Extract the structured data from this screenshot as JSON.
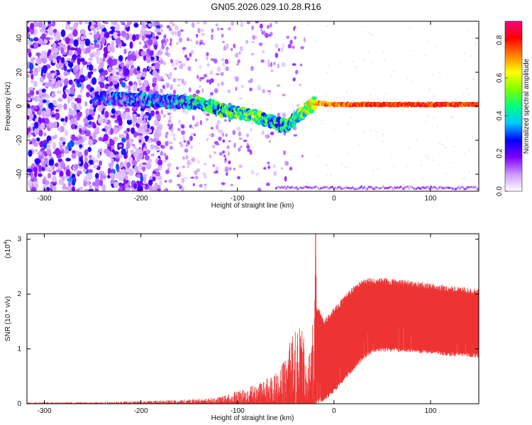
{
  "title": "GN05.2026.029.10.28.R16",
  "chart_data": [
    {
      "type": "heatmap",
      "xlabel": "Height of straight line (km)",
      "ylabel": "Frequency (Hz)",
      "xlim": [
        -318,
        150
      ],
      "ylim": [
        -50,
        50
      ],
      "xticks": [
        -300,
        -200,
        -100,
        0,
        100
      ],
      "yticks": [
        -40,
        -20,
        0,
        20,
        40
      ],
      "colorbar": {
        "label": "Normalized spectral amplitude",
        "range": [
          0.0,
          0.9
        ],
        "ticks": [
          0.0,
          0.2,
          0.4,
          0.6,
          0.8
        ],
        "colors": [
          "#ffffff",
          "#cc99ff",
          "#7f00ff",
          "#0000ff",
          "#00c8ff",
          "#00ff80",
          "#80ff00",
          "#ffff00",
          "#ff8000",
          "#ff0000",
          "#ff0080"
        ]
      },
      "features": {
        "noise_region_x": [
          -318,
          -180
        ],
        "scattered_region_x": [
          -180,
          -30
        ],
        "main_line": [
          {
            "x": -250,
            "f": 5,
            "a": 0.35
          },
          {
            "x": -180,
            "f": 3,
            "a": 0.45
          },
          {
            "x": -140,
            "f": 2,
            "a": 0.55
          },
          {
            "x": -110,
            "f": -3,
            "a": 0.6
          },
          {
            "x": -90,
            "f": -5,
            "a": 0.65
          },
          {
            "x": -70,
            "f": -8,
            "a": 0.6
          },
          {
            "x": -50,
            "f": -12,
            "a": 0.55
          },
          {
            "x": -20,
            "f": 2,
            "a": 0.75
          },
          {
            "x": 0,
            "f": 1,
            "a": 0.8
          },
          {
            "x": 50,
            "f": 1,
            "a": 0.85
          },
          {
            "x": 100,
            "f": 1,
            "a": 0.85
          },
          {
            "x": 150,
            "f": 1,
            "a": 0.85
          }
        ],
        "bottom_band_f": -48
      }
    },
    {
      "type": "area",
      "xlabel": "Height of straight line (km)",
      "ylabel": "SNR (10 * v/v)",
      "scale_label": "(x10",
      "scale_exp": "4",
      "xlim": [
        -318,
        150
      ],
      "ylim": [
        0,
        3.1
      ],
      "xticks": [
        -300,
        -200,
        -100,
        0,
        100
      ],
      "yticks": [
        0,
        1,
        2,
        3
      ],
      "color": "#ee3333",
      "envelope": {
        "x": [
          -318,
          -250,
          -200,
          -150,
          -120,
          -100,
          -80,
          -60,
          -50,
          -40,
          -30,
          -20,
          -19,
          -18,
          -10,
          0,
          10,
          20,
          30,
          40,
          50,
          60,
          80,
          100,
          120,
          150
        ],
        "max": [
          0.03,
          0.03,
          0.05,
          0.08,
          0.12,
          0.25,
          0.35,
          0.55,
          0.9,
          1.4,
          1.35,
          1.7,
          3.1,
          1.8,
          1.55,
          1.75,
          1.95,
          2.15,
          2.28,
          2.3,
          2.3,
          2.28,
          2.25,
          2.2,
          2.15,
          2.1
        ],
        "min": [
          0.0,
          0.0,
          0.0,
          0.0,
          0.0,
          0.0,
          0.0,
          0.0,
          0.0,
          0.0,
          0.0,
          0.0,
          0.0,
          0.0,
          0.05,
          0.2,
          0.4,
          0.6,
          0.8,
          0.92,
          0.95,
          0.95,
          0.93,
          0.9,
          0.87,
          0.84
        ]
      }
    }
  ]
}
